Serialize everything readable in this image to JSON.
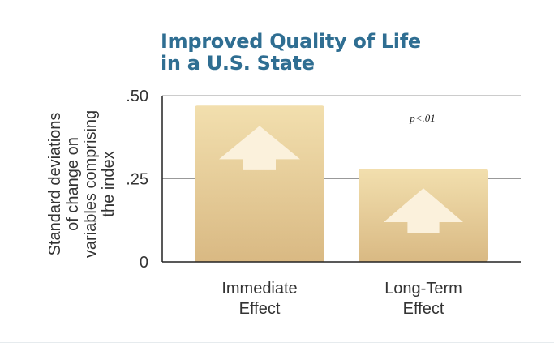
{
  "chart_data": {
    "type": "bar",
    "title_lines": [
      "Improved Quality of Life",
      "in a U.S. State"
    ],
    "ylabel_lines": [
      "Standard deviations",
      "of change on",
      "variables comprising",
      "the index"
    ],
    "categories": [
      {
        "lines": [
          "Immediate",
          "Effect"
        ]
      },
      {
        "lines": [
          "Long-Term",
          "Effect"
        ]
      }
    ],
    "values": [
      0.47,
      0.28
    ],
    "ylim": [
      0,
      0.5
    ],
    "yticks": [
      {
        "value": 0,
        "label": "0"
      },
      {
        "value": 0.25,
        "label": ".25"
      },
      {
        "value": 0.5,
        "label": ".50"
      }
    ],
    "grid": true,
    "annotation": "p<.01",
    "icon": "up-arrow-icon",
    "colors": {
      "title": "#2f6e92",
      "bar_top": "#f2dfae",
      "bar_bottom": "#d9b983",
      "arrow": "#fbf1dc",
      "grid": "#999999",
      "axis": "#222222",
      "text": "#333333"
    }
  }
}
